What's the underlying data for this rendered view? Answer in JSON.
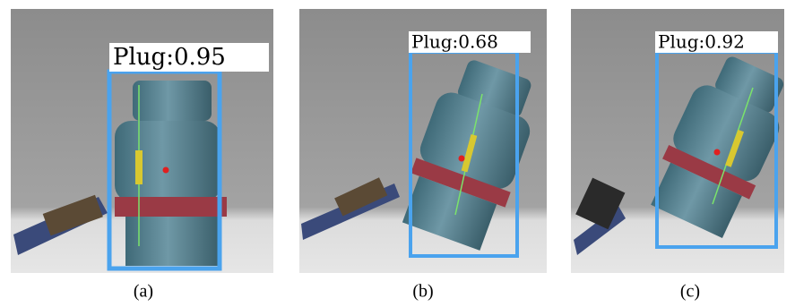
{
  "panels": [
    {
      "label": "Plug:0.95",
      "caption": "(a)"
    },
    {
      "label": "Plug:0.68",
      "caption": "(b)"
    },
    {
      "label": "Plug:0.92",
      "caption": "(c)"
    }
  ]
}
